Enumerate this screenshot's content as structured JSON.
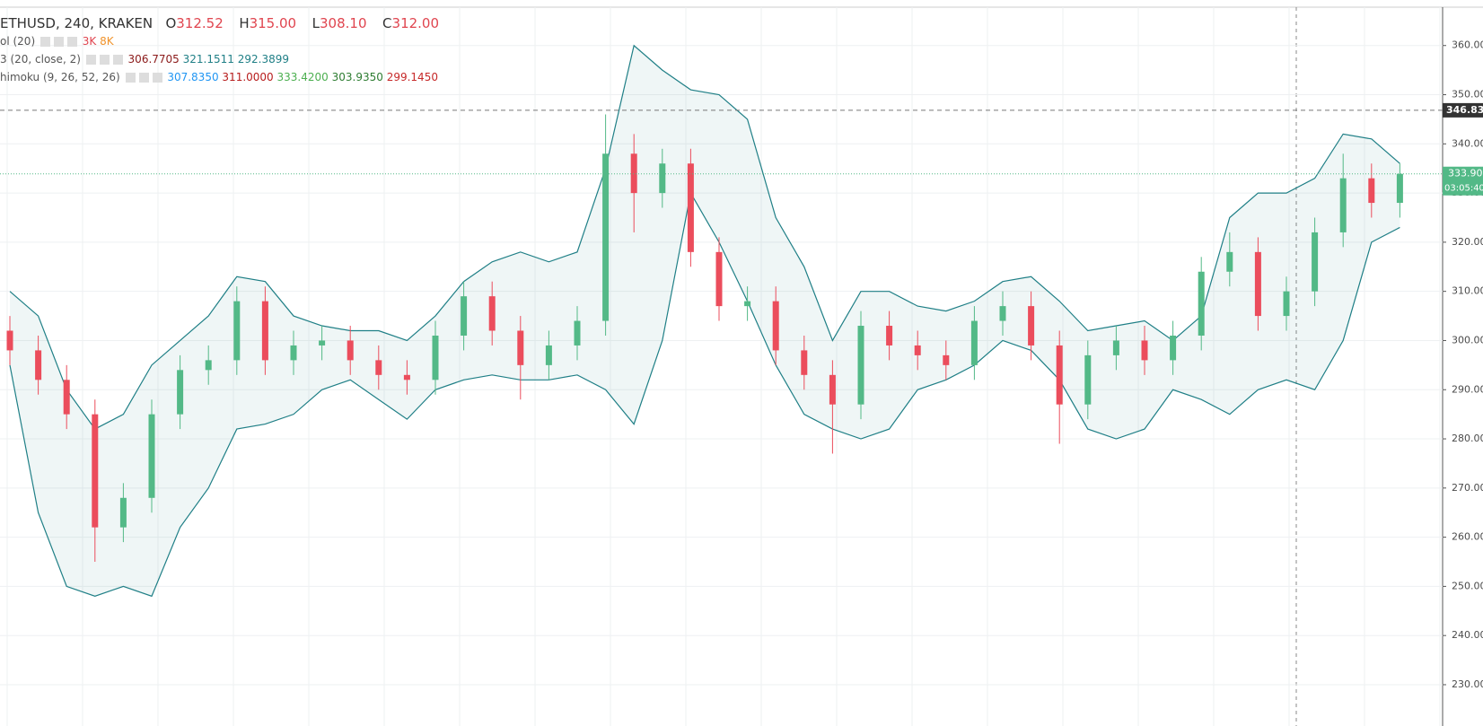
{
  "chart_data": {
    "type": "candlestick",
    "legend": {
      "symbol": "ETHUSD, 240, KRAKEN",
      "ohlc": [
        {
          "key": "O",
          "text": "312.52"
        },
        {
          "key": "H",
          "text": "315.00"
        },
        {
          "key": "L",
          "text": "308.10"
        },
        {
          "key": "C",
          "text": "312.00"
        }
      ],
      "volume": {
        "name": "ol (20)",
        "values": [
          {
            "text": "3K",
            "color": "#e0454f"
          },
          {
            "text": "8K",
            "color": "#f0932b"
          }
        ]
      },
      "bollinger": {
        "name": "3 (20, close, 2)",
        "values": [
          {
            "text": "306.7705",
            "color": "#8b1a1a"
          },
          {
            "text": "321.1511",
            "color": "#1f7f86"
          },
          {
            "text": "292.3899",
            "color": "#1f7f86"
          }
        ]
      },
      "ichimoku": {
        "name": "himoku (9, 26, 52, 26)",
        "values": [
          {
            "text": "307.8350",
            "color": "#2196f3"
          },
          {
            "text": "311.0000",
            "color": "#b71c1c"
          },
          {
            "text": "333.4200",
            "color": "#4caf50"
          },
          {
            "text": "303.9350",
            "color": "#2e7d32"
          },
          {
            "text": "299.1450",
            "color": "#c62828"
          }
        ]
      }
    },
    "open": [
      302,
      298,
      292,
      285,
      262,
      268,
      285,
      294,
      296,
      308,
      296,
      299,
      300,
      296,
      293,
      292,
      301,
      309,
      302,
      295,
      299,
      304,
      338,
      330,
      336,
      318,
      307,
      308,
      298,
      293,
      287,
      303,
      299,
      297,
      295,
      304,
      307,
      299,
      287,
      297,
      300,
      296,
      301,
      314,
      318,
      305,
      310,
      322,
      333,
      328
    ],
    "high": [
      305,
      301,
      295,
      288,
      271,
      288,
      297,
      299,
      311,
      311,
      302,
      303,
      303,
      299,
      296,
      304,
      312,
      312,
      305,
      302,
      307,
      346,
      342,
      339,
      339,
      321,
      311,
      311,
      301,
      296,
      306,
      306,
      302,
      300,
      307,
      310,
      310,
      302,
      300,
      303,
      303,
      304,
      317,
      322,
      321,
      313,
      325,
      338,
      336,
      336
    ],
    "low": [
      295,
      289,
      282,
      255,
      259,
      265,
      282,
      291,
      293,
      293,
      293,
      296,
      293,
      290,
      289,
      289,
      298,
      299,
      288,
      292,
      296,
      301,
      322,
      327,
      315,
      304,
      304,
      295,
      290,
      277,
      284,
      296,
      294,
      292,
      292,
      301,
      296,
      279,
      284,
      294,
      293,
      293,
      298,
      311,
      302,
      302,
      307,
      319,
      325,
      325
    ],
    "close": [
      298,
      292,
      285,
      262,
      268,
      285,
      294,
      296,
      308,
      296,
      299,
      300,
      296,
      293,
      292,
      301,
      309,
      302,
      295,
      299,
      304,
      338,
      330,
      336,
      318,
      307,
      308,
      298,
      293,
      287,
      303,
      299,
      297,
      295,
      304,
      307,
      299,
      287,
      297,
      300,
      296,
      301,
      314,
      318,
      305,
      310,
      322,
      333,
      328,
      333.9
    ],
    "up_color": "#53b987",
    "down_color": "#eb4d5c",
    "series": [
      {
        "name": "BB upper",
        "color": "#1f7f86",
        "values": [
          310,
          305,
          290,
          282,
          285,
          295,
          300,
          305,
          313,
          312,
          305,
          303,
          302,
          302,
          300,
          305,
          312,
          316,
          318,
          316,
          318,
          335,
          360,
          355,
          351,
          350,
          345,
          325,
          315,
          300,
          310,
          310,
          307,
          306,
          308,
          312,
          313,
          308,
          302,
          303,
          304,
          300,
          305,
          325,
          330,
          330,
          333,
          342,
          341,
          336
        ]
      },
      {
        "name": "BB lower",
        "color": "#1f7f86",
        "values": [
          295,
          265,
          250,
          248,
          250,
          248,
          262,
          270,
          282,
          283,
          285,
          290,
          292,
          288,
          284,
          290,
          292,
          293,
          292,
          292,
          293,
          290,
          283,
          300,
          330,
          320,
          308,
          295,
          285,
          282,
          280,
          282,
          290,
          292,
          295,
          300,
          298,
          292,
          282,
          280,
          282,
          290,
          288,
          285,
          290,
          292,
          290,
          300,
          320,
          323
        ]
      }
    ],
    "ylim": [
      221.6,
      367.8
    ],
    "yticks": [
      {
        "value": 230,
        "label": "230.00"
      },
      {
        "value": 240,
        "label": "240.00"
      },
      {
        "value": 250,
        "label": "250.00"
      },
      {
        "value": 260,
        "label": "260.00"
      },
      {
        "value": 270,
        "label": "270.00"
      },
      {
        "value": 280,
        "label": "280.00"
      },
      {
        "value": 290,
        "label": "290.00"
      },
      {
        "value": 300,
        "label": "300.00"
      },
      {
        "value": 310,
        "label": "310.00"
      },
      {
        "value": 320,
        "label": "320.00"
      },
      {
        "value": 330,
        "label": "330.00"
      },
      {
        "value": 340,
        "label": "340.00"
      },
      {
        "value": 350,
        "label": "350.00"
      },
      {
        "value": 360,
        "label": "360.00"
      }
    ],
    "grid": true,
    "high_line": 346.83,
    "last_price": {
      "value": 333.9,
      "label": "333.90"
    },
    "countdown": "03:05:40"
  }
}
